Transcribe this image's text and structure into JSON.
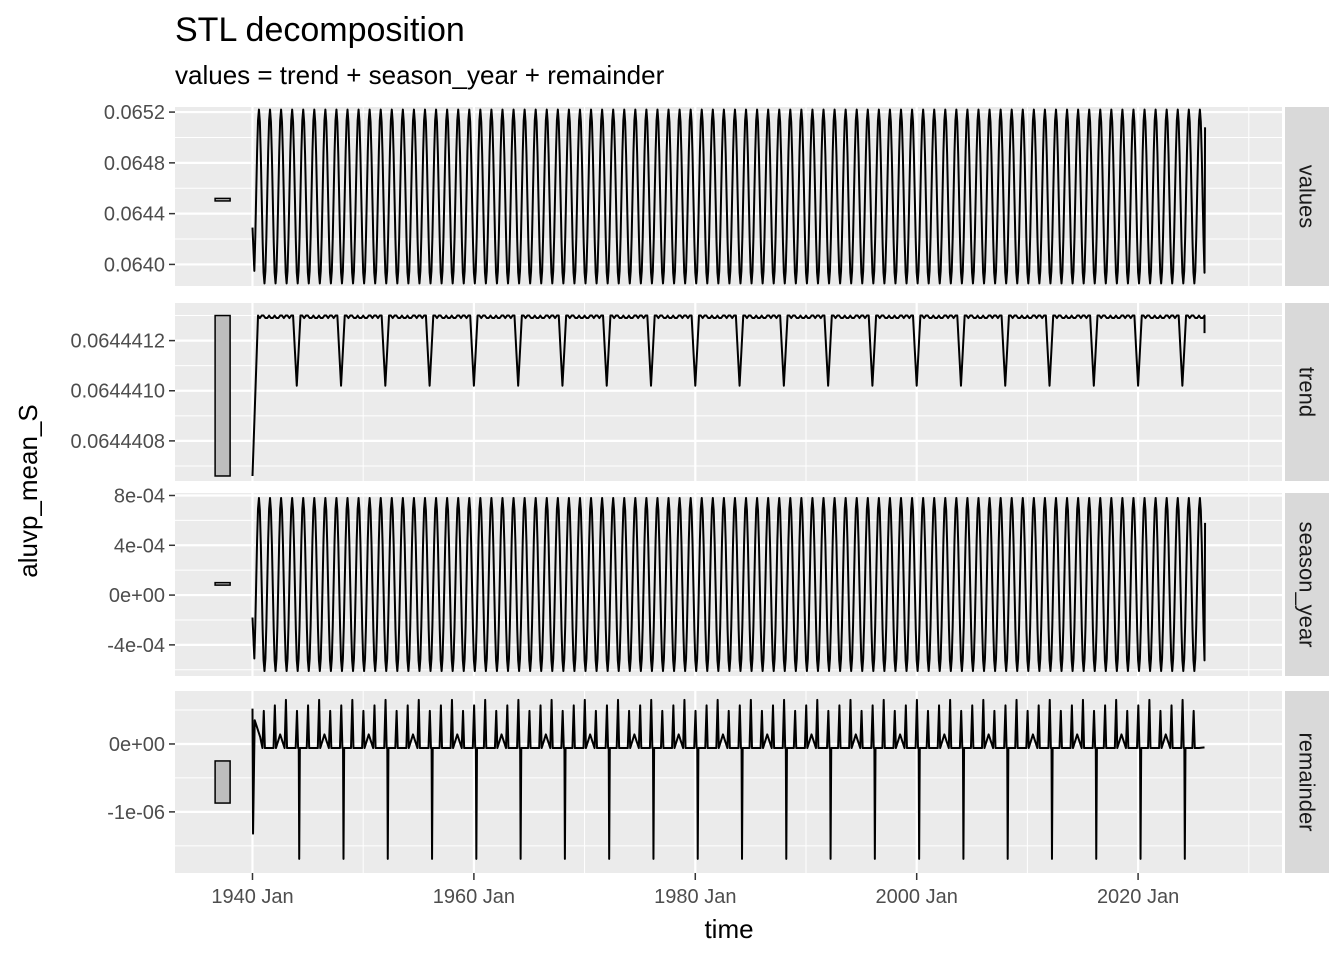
{
  "chart_data": {
    "type": "line",
    "title": "STL decomposition",
    "subtitle": "values = trend + season_year + remainder",
    "xlabel": "time",
    "ylabel": "aluvp_mean_S",
    "x_start": "1940 Jan",
    "x_end": "2026 Jan",
    "x_ticks": [
      "1940 Jan",
      "1960 Jan",
      "1980 Jan",
      "2000 Jan",
      "2020 Jan"
    ],
    "xlim": [
      "1933 Jan",
      "2033 Jan"
    ],
    "grid": true,
    "colors": {
      "panel_background": "#ebebeb",
      "grid": "#ffffff",
      "strip_background": "#d9d9d9",
      "line": "#000000",
      "range_bar_fill": "#bebebe"
    },
    "panels": [
      {
        "name": "values",
        "ylim": [
          0.06383,
          0.06524
        ],
        "y_ticks": [
          "0.0640",
          "0.0644",
          "0.0648",
          "0.0652"
        ],
        "y_tick_values": [
          0.064,
          0.0644,
          0.0648,
          0.0652
        ],
        "range_bar": [
          0.0645,
          0.06452
        ],
        "series_description": "seasonal oscillation, one cycle per year",
        "min": 0.06385,
        "max": 0.06522
      },
      {
        "name": "trend",
        "ylim": [
          0.06444064,
          0.06444135
        ],
        "y_ticks": [
          "0.0644408",
          "0.0644410",
          "0.0644412"
        ],
        "y_tick_values": [
          0.0644408,
          0.064441,
          0.0644412
        ],
        "range_bar": [
          0.06444066,
          0.0644413
        ],
        "min": 0.06444066,
        "plateau": 0.0644413,
        "dip": 0.06444102
      },
      {
        "name": "season_year",
        "ylim": [
          -0.00065,
          0.00082
        ],
        "y_ticks": [
          "-4e-04",
          "0e+00",
          "4e-04",
          "8e-04"
        ],
        "y_tick_values": [
          -0.0004,
          0,
          0.0004,
          0.0008
        ],
        "range_bar": [
          8e-05,
          0.0001
        ],
        "min": -0.00061,
        "max": 0.00078
      },
      {
        "name": "remainder",
        "ylim": [
          -1.9e-06,
          7.8e-07
        ],
        "y_ticks": [
          "-1e-06",
          "0e+00"
        ],
        "y_tick_values": [
          -1e-06,
          0
        ],
        "range_bar": [
          -8.7e-07,
          -2.5e-07
        ],
        "baseline": -6e-08,
        "spike_max": 6.5e-07,
        "spike_min": -1.8e-06
      }
    ]
  }
}
